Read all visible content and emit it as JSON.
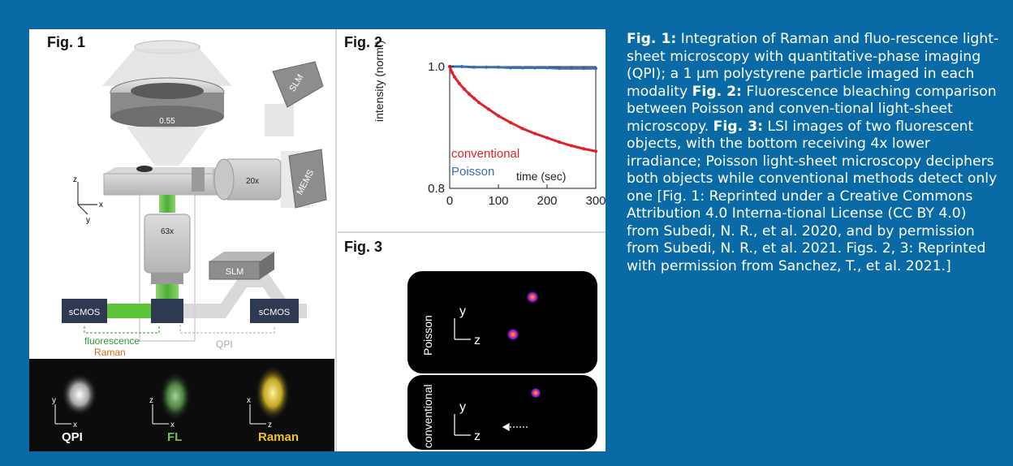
{
  "fig1": {
    "label": "Fig. 1",
    "objective_na": "0.55",
    "objective_20x": "20x",
    "objective_63x": "63x",
    "slm_top": "SLM",
    "mems": "MEMS",
    "slm_bottom": "SLM",
    "camera_left": "sCMOS",
    "camera_right": "sCMOS",
    "legend_fluorescence": "fluorescence",
    "legend_raman": "Raman",
    "legend_qpi": "QPI",
    "axis_z": "z",
    "axis_x": "x",
    "axis_y": "y",
    "inset": {
      "qpi": "QPI",
      "fl": "FL",
      "raman": "Raman",
      "qpi_axes": [
        "y",
        "x"
      ],
      "fl_axes": [
        "z",
        "x"
      ],
      "raman_axes": [
        "x",
        "z"
      ]
    },
    "colors": {
      "fluorescence": "#2e9a2e",
      "raman": "#d2691e",
      "qpi": "#aaaaaa"
    }
  },
  "fig2": {
    "label": "Fig. 2",
    "chart_data": {
      "type": "line",
      "xlabel": "time (sec)",
      "ylabel": "intensity (norm.)",
      "xlim": [
        0,
        300
      ],
      "ylim": [
        0.8,
        1.0
      ],
      "xticks": [
        "0",
        "100",
        "200",
        "300"
      ],
      "yticks": [
        "0.8",
        "1.0"
      ],
      "series": [
        {
          "name": "Poisson",
          "color": "#3b6db3",
          "x": [
            0,
            25,
            50,
            75,
            100,
            125,
            150,
            175,
            200,
            225,
            250,
            275,
            300
          ],
          "y": [
            1.0,
            1.0,
            0.999,
            0.999,
            0.999,
            0.998,
            0.998,
            0.998,
            0.998,
            0.997,
            0.997,
            0.997,
            0.997
          ]
        },
        {
          "name": "conventional",
          "color": "#e0202a",
          "x": [
            0,
            5,
            10,
            20,
            30,
            40,
            50,
            60,
            80,
            100,
            125,
            150,
            175,
            200,
            225,
            250,
            275,
            300
          ],
          "y": [
            1.0,
            0.99,
            0.983,
            0.972,
            0.963,
            0.955,
            0.948,
            0.941,
            0.93,
            0.919,
            0.908,
            0.898,
            0.89,
            0.883,
            0.876,
            0.87,
            0.865,
            0.861
          ]
        }
      ]
    }
  },
  "fig3": {
    "label": "Fig. 3",
    "poisson_label": "Poisson",
    "conventional_label": "conventional",
    "axis_y": "y",
    "axis_z": "z"
  },
  "caption": {
    "fig1_title": "Fig. 1:",
    "fig1_text": " Integration of Raman and fluo-rescence light-sheet microscopy with quantitative-phase imaging (QPI); a 1 µm polystyrene particle imaged in each modality ",
    "fig2_title": "Fig. 2:",
    "fig2_text": " Fluorescence bleaching comparison between Poisson and conven-tional light-sheet microscopy. ",
    "fig3_title": "Fig. 3:",
    "fig3_text": " LSI images of two fluorescent objects, with the bottom receiving 4x lower irradiance; Poisson light-sheet microscopy deciphers both objects while conventional methods detect only one [Fig. 1: Reprinted under a Creative Commons Attribution 4.0 Interna-tional License (CC BY 4.0) from Subedi, N. R., et al. 2020, and by permission from Subedi, N. R., et al. 2021. Figs. 2, 3: Reprinted with permission from Sanchez, T., et al. 2021.]"
  }
}
